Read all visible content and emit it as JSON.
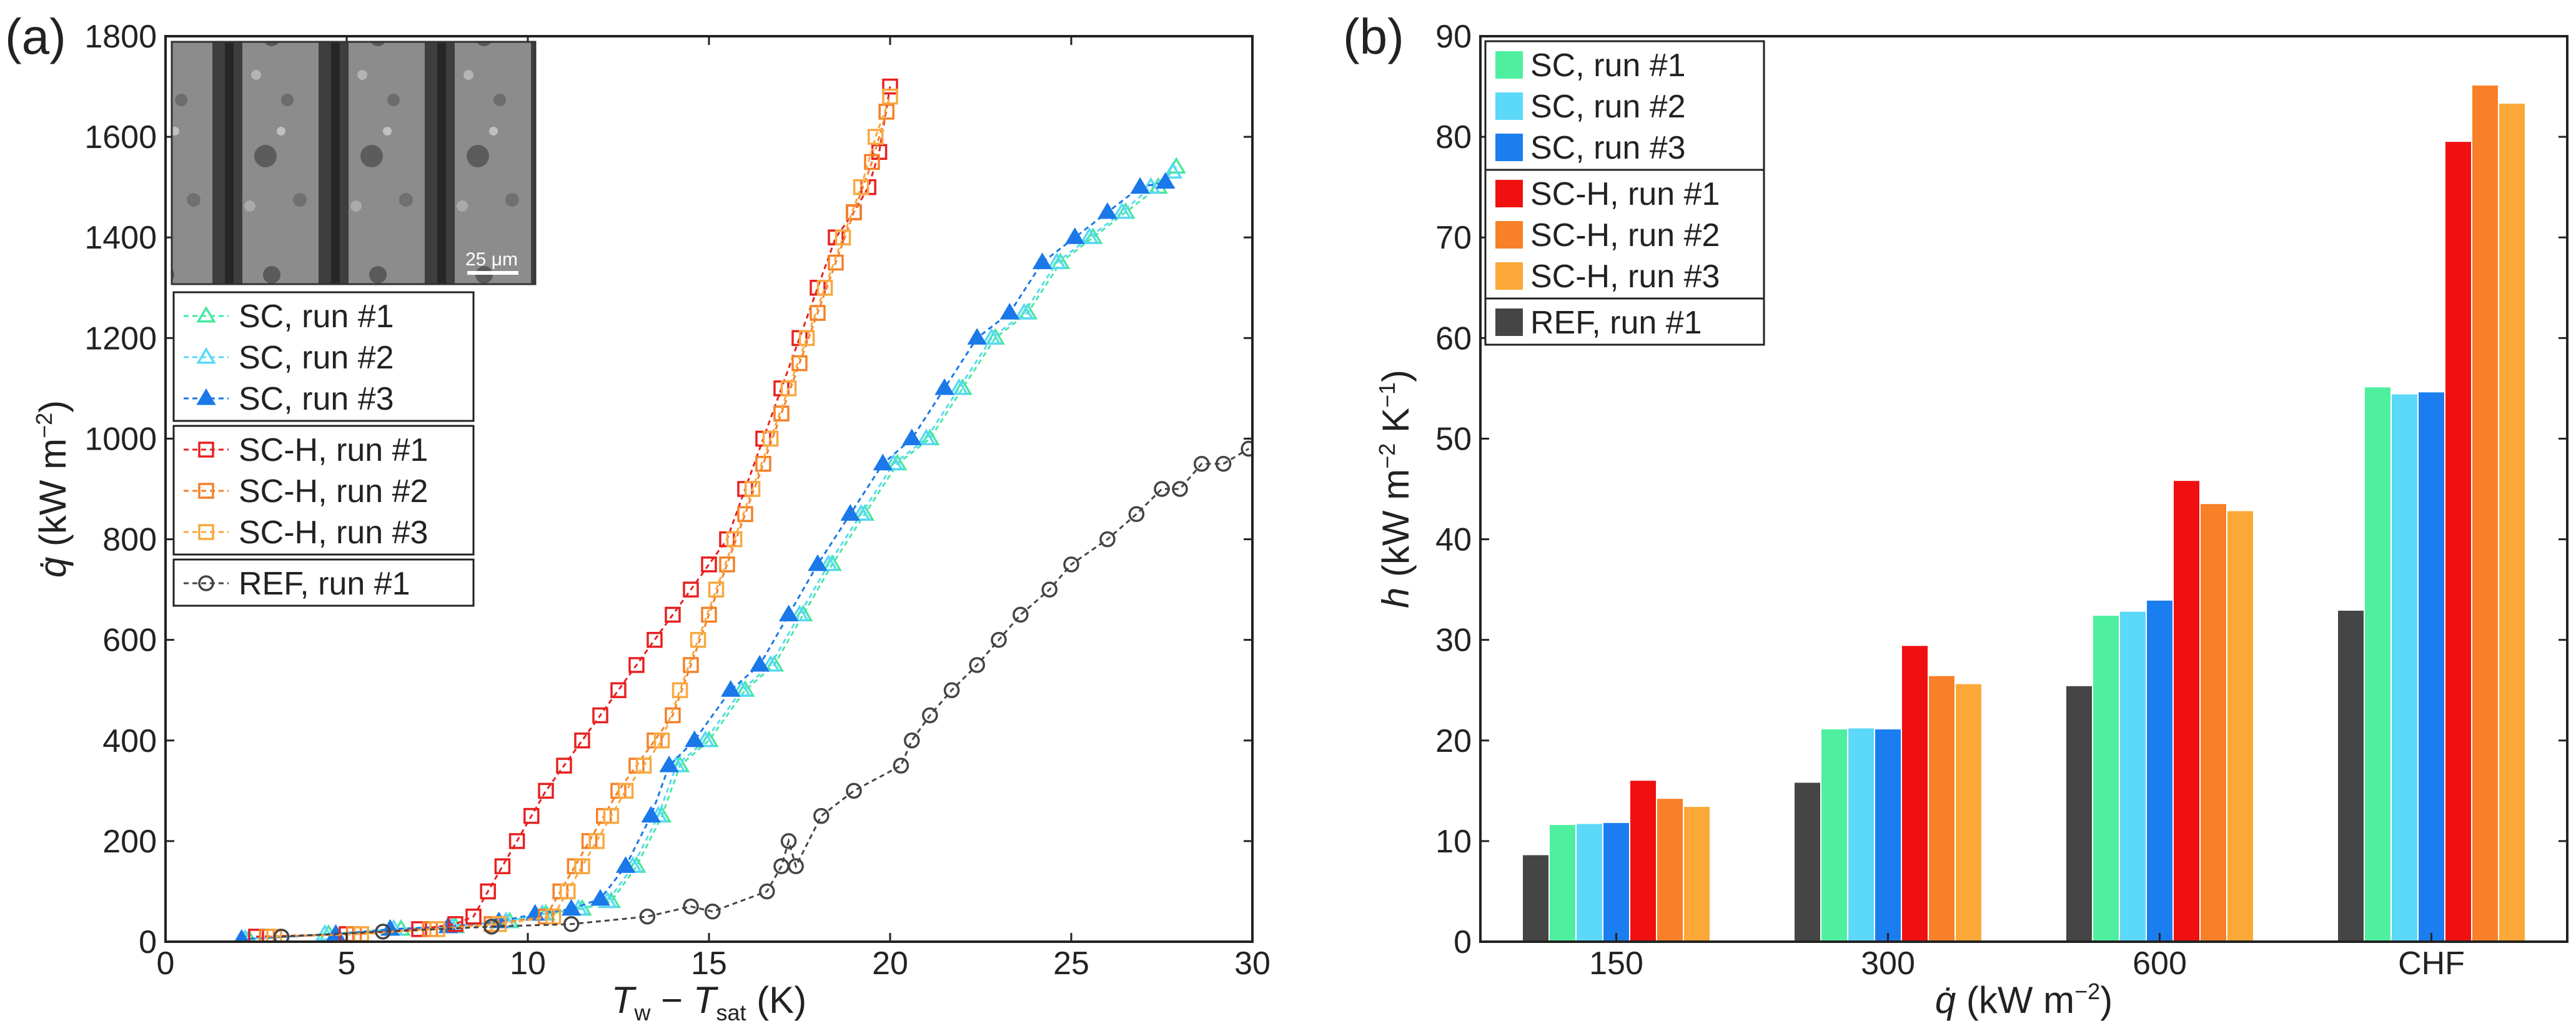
{
  "chart_data": [
    {
      "panel": "(a)",
      "type": "line",
      "xlabel_main": "T",
      "xlabel_sub1": "w",
      "xlabel_mid": " − ",
      "xlabel_main2": "T",
      "xlabel_sub2": "sat",
      "xlabel_unit": " (K)",
      "ylabel_main": "q̇",
      "ylabel_unit": " (kW m",
      "ylabel_exp": "−2",
      "ylabel_close": ")",
      "xlim": [
        0,
        30
      ],
      "ylim": [
        0,
        1800
      ],
      "xticks": [
        0,
        5,
        10,
        15,
        20,
        25,
        30
      ],
      "yticks": [
        0,
        200,
        400,
        600,
        800,
        1000,
        1200,
        1400,
        1600,
        1800
      ],
      "inset_scale_label": "25 μm",
      "legend_groups": [
        [
          0,
          1,
          2
        ],
        [
          3,
          4,
          5
        ],
        [
          6
        ]
      ],
      "series": [
        {
          "name": "SC, run #1",
          "color": "#48e8a0",
          "marker": "triangle-open",
          "x": [
            2.3,
            4.5,
            6.5,
            8.0,
            9.5,
            10.5,
            11.5,
            12.3,
            13.0,
            13.7,
            14.2,
            15.0,
            16.0,
            16.8,
            17.6,
            18.4,
            19.3,
            20.2,
            21.1,
            22.0,
            22.9,
            23.8,
            24.7,
            25.6,
            26.5,
            27.4,
            27.9
          ],
          "y": [
            5,
            15,
            25,
            30,
            40,
            55,
            65,
            80,
            150,
            250,
            350,
            400,
            500,
            550,
            650,
            750,
            850,
            950,
            1000,
            1100,
            1200,
            1250,
            1350,
            1400,
            1450,
            1500,
            1540
          ]
        },
        {
          "name": "SC, run #2",
          "color": "#5ad8f8",
          "marker": "triangle-open",
          "x": [
            2.2,
            4.4,
            6.3,
            7.9,
            9.4,
            10.4,
            11.4,
            12.2,
            12.9,
            13.6,
            14.1,
            14.9,
            15.9,
            16.7,
            17.5,
            18.3,
            19.2,
            20.1,
            21.0,
            21.9,
            22.8,
            23.7,
            24.6,
            25.5,
            26.4,
            27.2,
            27.8
          ],
          "y": [
            5,
            15,
            25,
            30,
            40,
            55,
            65,
            80,
            150,
            250,
            350,
            400,
            500,
            550,
            650,
            750,
            850,
            950,
            1000,
            1100,
            1200,
            1250,
            1350,
            1400,
            1450,
            1500,
            1530
          ]
        },
        {
          "name": "SC, run #3",
          "color": "#1a78e8",
          "marker": "triangle-filled",
          "x": [
            2.1,
            4.7,
            6.2,
            7.8,
            9.2,
            10.2,
            11.2,
            12.0,
            12.7,
            13.4,
            13.9,
            14.6,
            15.6,
            16.4,
            17.2,
            18.0,
            18.9,
            19.8,
            20.6,
            21.5,
            22.4,
            23.3,
            24.2,
            25.1,
            26.0,
            26.9,
            27.6
          ],
          "y": [
            5,
            15,
            25,
            30,
            40,
            55,
            65,
            85,
            150,
            250,
            350,
            400,
            500,
            550,
            650,
            750,
            850,
            950,
            1000,
            1100,
            1200,
            1250,
            1350,
            1400,
            1450,
            1500,
            1510
          ]
        },
        {
          "name": "SC-H, run #1",
          "color": "#e82020",
          "marker": "square-open",
          "x": [
            2.5,
            5.0,
            7.0,
            8.0,
            8.5,
            8.9,
            9.3,
            9.7,
            10.1,
            10.5,
            11.0,
            11.5,
            12.0,
            12.5,
            13.0,
            13.5,
            14.0,
            14.5,
            15.0,
            15.5,
            16.0,
            16.5,
            17.0,
            17.5,
            18.0,
            18.5,
            19.0,
            19.4,
            19.7,
            20.0
          ],
          "y": [
            10,
            15,
            25,
            35,
            50,
            100,
            150,
            200,
            250,
            300,
            350,
            400,
            450,
            500,
            550,
            600,
            650,
            700,
            750,
            800,
            900,
            1000,
            1100,
            1200,
            1300,
            1400,
            1450,
            1500,
            1570,
            1700
          ]
        },
        {
          "name": "SC-H, run #2",
          "color": "#f58028",
          "marker": "square-open",
          "x": [
            2.8,
            5.2,
            7.3,
            9.0,
            10.5,
            10.9,
            11.3,
            11.7,
            12.1,
            12.5,
            13.0,
            13.5,
            14.0,
            14.5,
            15.0,
            15.5,
            16.0,
            16.5,
            17.0,
            17.5,
            18.0,
            18.5,
            19.0,
            19.5,
            19.9
          ],
          "y": [
            10,
            15,
            25,
            35,
            50,
            100,
            150,
            200,
            250,
            300,
            350,
            400,
            450,
            550,
            650,
            750,
            850,
            950,
            1050,
            1150,
            1250,
            1350,
            1450,
            1550,
            1650
          ]
        },
        {
          "name": "SC-H, run #3",
          "color": "#f8a840",
          "marker": "square-open",
          "x": [
            3.0,
            5.4,
            7.5,
            9.2,
            10.7,
            11.1,
            11.5,
            11.9,
            12.3,
            12.7,
            13.2,
            13.7,
            14.2,
            14.7,
            15.2,
            15.7,
            16.2,
            16.7,
            17.2,
            17.7,
            18.2,
            18.7,
            19.2,
            19.6,
            20.0
          ],
          "y": [
            10,
            15,
            25,
            35,
            50,
            100,
            150,
            200,
            250,
            300,
            350,
            400,
            500,
            600,
            700,
            800,
            900,
            1000,
            1100,
            1200,
            1300,
            1400,
            1500,
            1600,
            1680
          ]
        },
        {
          "name": "REF, run #1",
          "color": "#444444",
          "marker": "circle-open",
          "x": [
            3.2,
            6.0,
            9.0,
            11.2,
            13.3,
            14.5,
            15.1,
            16.6,
            17.0,
            17.2,
            17.4,
            18.1,
            19.0,
            20.3,
            20.6,
            21.1,
            21.7,
            22.4,
            23.0,
            23.6,
            24.4,
            25.0,
            26.0,
            26.8,
            27.5,
            28.0,
            28.6,
            29.2,
            29.9
          ],
          "y": [
            10,
            20,
            30,
            35,
            50,
            70,
            60,
            100,
            150,
            200,
            150,
            250,
            300,
            350,
            400,
            450,
            500,
            550,
            600,
            650,
            700,
            750,
            800,
            850,
            900,
            900,
            950,
            950,
            980
          ]
        }
      ]
    },
    {
      "panel": "(b)",
      "type": "bar",
      "categories": [
        "150",
        "300",
        "600",
        "CHF"
      ],
      "xlabel_main": "q̇",
      "xlabel_unit": " (kW m",
      "xlabel_exp": "−2",
      "xlabel_close": ")",
      "ylabel_main": "h",
      "ylabel_unit": " (kW m",
      "ylabel_exp1": "−2",
      "ylabel_mid": " K",
      "ylabel_exp2": "−1",
      "ylabel_close": ")",
      "ylim": [
        0,
        90
      ],
      "yticks": [
        0,
        10,
        20,
        30,
        40,
        50,
        60,
        70,
        80,
        90
      ],
      "legend_groups": [
        [
          1,
          2,
          3
        ],
        [
          4,
          5,
          6
        ],
        [
          0
        ]
      ],
      "series": [
        {
          "name": "REF, run #1",
          "color": "#454545",
          "values": [
            8.6,
            15.8,
            25.4,
            32.9
          ]
        },
        {
          "name": "SC, run #1",
          "color": "#4ef0a0",
          "values": [
            11.6,
            21.1,
            32.4,
            55.1
          ]
        },
        {
          "name": "SC, run #2",
          "color": "#5cd8f8",
          "values": [
            11.7,
            21.2,
            32.8,
            54.4
          ]
        },
        {
          "name": "SC, run #3",
          "color": "#1a7ef0",
          "values": [
            11.8,
            21.1,
            33.9,
            54.6
          ]
        },
        {
          "name": "SC-H, run #1",
          "color": "#f01010",
          "values": [
            16.0,
            29.4,
            45.8,
            79.5
          ]
        },
        {
          "name": "SC-H, run #2",
          "color": "#f88028",
          "values": [
            14.2,
            26.4,
            43.5,
            85.1
          ]
        },
        {
          "name": "SC-H, run #3",
          "color": "#fba838",
          "values": [
            13.4,
            25.6,
            42.8,
            83.3
          ]
        }
      ]
    }
  ]
}
